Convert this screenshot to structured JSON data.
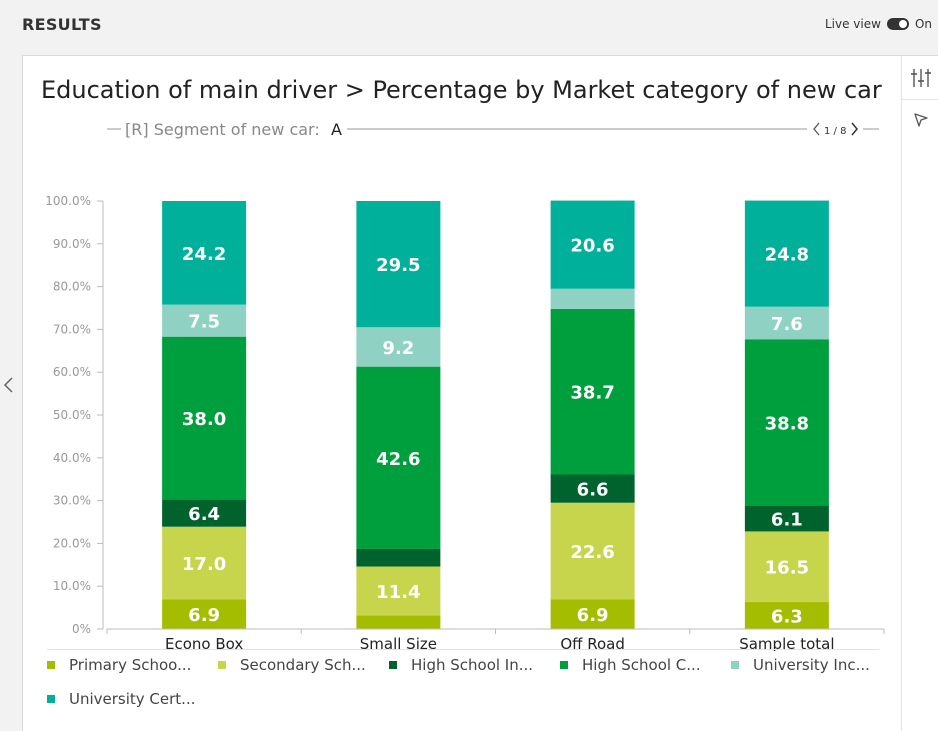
{
  "header": {
    "title": "RESULTS",
    "live_label": "Live view",
    "live_state": "On"
  },
  "chart_title": "Education of main driver > Percentage by Market category of new car",
  "segment": {
    "prefix": "[R] Segment of new car:",
    "value": "A",
    "pager": "1 / 8"
  },
  "icons": {
    "filter": "sliders-icon",
    "select": "cursor-arrow-icon",
    "prev": "chevron-left-icon",
    "pager_prev": "chevron-left-icon",
    "pager_next": "chevron-right-icon"
  },
  "chart_data": {
    "type": "bar",
    "stacked": true,
    "categories": [
      "Econo Box",
      "Small Size",
      "Off Road",
      "Sample total"
    ],
    "series": [
      {
        "name": "Primary Schoo...",
        "color": "#a4bd00",
        "values": [
          6.9,
          3.2,
          6.9,
          6.3
        ]
      },
      {
        "name": "Secondary Sch...",
        "color": "#c7d54d",
        "values": [
          17.0,
          11.4,
          22.6,
          16.5
        ]
      },
      {
        "name": "High School In...",
        "color": "#00632d",
        "values": [
          6.4,
          4.1,
          6.6,
          6.1
        ]
      },
      {
        "name": "High School C...",
        "color": "#009f3e",
        "values": [
          38.0,
          42.6,
          38.7,
          38.8
        ]
      },
      {
        "name": "University Inc...",
        "color": "#8fd1c2",
        "values": [
          7.5,
          9.2,
          4.7,
          7.6
        ]
      },
      {
        "name": "University Cert...",
        "color": "#00b09b",
        "values": [
          24.2,
          29.5,
          20.6,
          24.8
        ]
      }
    ],
    "data_labels": [
      [
        "6.9",
        "",
        "6.9",
        "6.3"
      ],
      [
        "17.0",
        "11.4",
        "22.6",
        "16.5"
      ],
      [
        "6.4",
        "",
        "6.6",
        "6.1"
      ],
      [
        "38.0",
        "42.6",
        "38.7",
        "38.8"
      ],
      [
        "7.5",
        "9.2",
        "",
        "7.6"
      ],
      [
        "24.2",
        "29.5",
        "20.6",
        "24.8"
      ]
    ],
    "ylim": [
      0,
      100
    ],
    "yticks": [
      "0%",
      "10.0%",
      "20.0%",
      "30.0%",
      "40.0%",
      "50.0%",
      "60.0%",
      "70.0%",
      "80.0%",
      "90.0%",
      "100.0%"
    ],
    "grid": false,
    "legend_position": "bottom"
  }
}
